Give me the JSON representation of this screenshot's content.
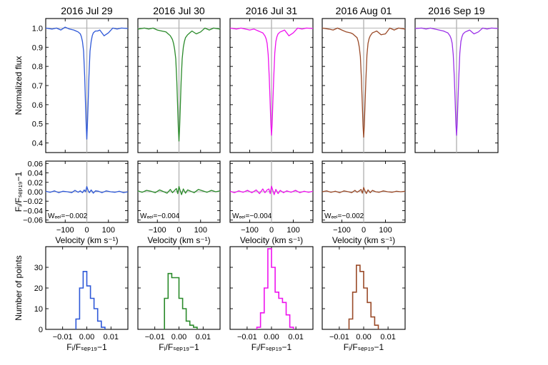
{
  "chart_data": [
    {
      "type": "line",
      "title": "2016 Jul 29",
      "ylabel": "Normalized flux",
      "xlim": [
        -190,
        190
      ],
      "ylim": [
        0.35,
        1.05
      ],
      "yticks": [
        "0.4",
        "0.5",
        "0.6",
        "0.7",
        "0.8",
        "0.9",
        "1.0"
      ],
      "series": [
        {
          "color": "#2e58d8",
          "min": 0.42,
          "x": [
            -190,
            -160,
            -140,
            -120,
            -100,
            -80,
            -60,
            -50,
            -40,
            -30,
            -25,
            -20,
            -15,
            -10,
            -6,
            -3,
            0,
            3,
            6,
            10,
            15,
            20,
            25,
            30,
            40,
            50,
            60,
            80,
            100,
            120,
            140,
            160,
            190
          ],
          "y": [
            1.0,
            0.995,
            1.0,
            0.99,
            1.005,
            0.995,
            0.99,
            0.985,
            0.98,
            0.97,
            0.955,
            0.93,
            0.88,
            0.75,
            0.6,
            0.5,
            0.42,
            0.5,
            0.6,
            0.75,
            0.88,
            0.93,
            0.96,
            0.975,
            0.985,
            0.985,
            0.99,
            0.96,
            0.975,
            1.0,
            0.995,
            1.0,
            0.998
          ]
        }
      ]
    },
    {
      "type": "line",
      "title": "2016 Jul 30",
      "xlim": [
        -190,
        190
      ],
      "ylim": [
        0.35,
        1.05
      ],
      "series": [
        {
          "color": "#2a8a2a",
          "min": 0.41,
          "x": [
            -190,
            -160,
            -140,
            -120,
            -100,
            -80,
            -60,
            -50,
            -40,
            -30,
            -25,
            -20,
            -15,
            -10,
            -6,
            -3,
            0,
            3,
            6,
            10,
            15,
            20,
            25,
            30,
            40,
            50,
            60,
            80,
            100,
            120,
            140,
            160,
            190
          ],
          "y": [
            0.995,
            1.0,
            0.995,
            1.0,
            0.99,
            0.985,
            0.98,
            0.97,
            0.96,
            0.94,
            0.92,
            0.89,
            0.84,
            0.72,
            0.58,
            0.48,
            0.41,
            0.48,
            0.58,
            0.72,
            0.84,
            0.9,
            0.93,
            0.95,
            0.965,
            0.975,
            0.985,
            0.97,
            0.98,
            1.0,
            0.99,
            1.0,
            0.995
          ]
        }
      ]
    },
    {
      "type": "line",
      "title": "2016 Jul 31",
      "xlim": [
        -190,
        190
      ],
      "ylim": [
        0.35,
        1.05
      ],
      "series": [
        {
          "color": "#ee12ee",
          "min": 0.44,
          "x": [
            -190,
            -160,
            -140,
            -120,
            -100,
            -80,
            -60,
            -50,
            -40,
            -30,
            -25,
            -20,
            -15,
            -10,
            -6,
            -3,
            0,
            3,
            6,
            10,
            15,
            20,
            25,
            30,
            40,
            50,
            60,
            80,
            100,
            120,
            140,
            160,
            190
          ],
          "y": [
            1.0,
            0.995,
            1.0,
            0.995,
            0.99,
            0.995,
            0.985,
            0.98,
            0.975,
            0.96,
            0.945,
            0.92,
            0.86,
            0.74,
            0.6,
            0.5,
            0.44,
            0.5,
            0.6,
            0.74,
            0.87,
            0.93,
            0.955,
            0.97,
            0.98,
            0.985,
            0.99,
            0.96,
            0.975,
            1.0,
            0.995,
            1.0,
            0.998
          ]
        }
      ]
    },
    {
      "type": "line",
      "title": "2016 Aug 01",
      "xlim": [
        -190,
        190
      ],
      "ylim": [
        0.35,
        1.05
      ],
      "series": [
        {
          "color": "#9a4a28",
          "min": 0.43,
          "x": [
            -190,
            -160,
            -140,
            -120,
            -100,
            -80,
            -60,
            -50,
            -40,
            -30,
            -25,
            -20,
            -15,
            -10,
            -6,
            -3,
            0,
            3,
            6,
            10,
            15,
            20,
            25,
            30,
            40,
            50,
            60,
            80,
            100,
            120,
            140,
            160,
            190
          ],
          "y": [
            1.0,
            0.995,
            0.99,
            1.0,
            0.99,
            0.98,
            0.975,
            0.97,
            0.96,
            0.95,
            0.93,
            0.9,
            0.85,
            0.73,
            0.59,
            0.49,
            0.43,
            0.49,
            0.59,
            0.73,
            0.86,
            0.92,
            0.945,
            0.96,
            0.975,
            0.98,
            0.985,
            0.965,
            0.97,
            1.0,
            0.99,
            1.0,
            0.995
          ]
        }
      ]
    },
    {
      "type": "line",
      "title": "2016 Sep 19",
      "xlim": [
        -190,
        190
      ],
      "ylim": [
        0.35,
        1.05
      ],
      "series": [
        {
          "color": "#9b30e8",
          "min": 0.44,
          "x": [
            -190,
            -160,
            -140,
            -120,
            -100,
            -80,
            -60,
            -50,
            -40,
            -30,
            -25,
            -20,
            -15,
            -10,
            -6,
            -3,
            0,
            3,
            6,
            10,
            15,
            20,
            25,
            30,
            40,
            50,
            60,
            80,
            100,
            120,
            140,
            160,
            190
          ],
          "y": [
            0.998,
            1.0,
            0.995,
            1.0,
            0.995,
            0.99,
            0.985,
            0.98,
            0.975,
            0.96,
            0.945,
            0.92,
            0.86,
            0.74,
            0.6,
            0.5,
            0.44,
            0.5,
            0.6,
            0.74,
            0.87,
            0.93,
            0.955,
            0.97,
            0.98,
            0.985,
            0.99,
            0.97,
            0.98,
            1.0,
            0.995,
            1.0,
            0.998
          ]
        }
      ]
    },
    {
      "type": "line",
      "xlabel": "Velocity (km s⁻¹)",
      "ylabel": "Fᵢ/Fₛₑₚ₁₉−1",
      "xlim": [
        -190,
        190
      ],
      "ylim": [
        -0.065,
        0.065
      ],
      "xticks": [
        "−100",
        "0",
        "100"
      ],
      "yticks": [
        "−0.06",
        "−0.04",
        "−0.02",
        "0.00",
        "0.02",
        "0.04",
        "0.06"
      ],
      "annotation": "Wₑₑₗ=−0.002",
      "series": [
        {
          "color": "#2e58d8",
          "x": [
            -190,
            -170,
            -150,
            -130,
            -110,
            -90,
            -70,
            -55,
            -40,
            -30,
            -20,
            -12,
            -6,
            0,
            6,
            12,
            20,
            30,
            40,
            55,
            70,
            90,
            110,
            130,
            150,
            170,
            190
          ],
          "y": [
            0.001,
            -0.001,
            0.002,
            -0.002,
            0.001,
            0.0,
            -0.002,
            0.003,
            -0.001,
            0.002,
            -0.002,
            0.004,
            0.0,
            0.011,
            0.003,
            -0.002,
            0.004,
            -0.003,
            0.002,
            0.001,
            -0.002,
            0.002,
            0.0,
            -0.001,
            0.001,
            -0.002,
            0.0
          ]
        }
      ]
    },
    {
      "type": "line",
      "xlabel": "Velocity (km s⁻¹)",
      "xlim": [
        -190,
        190
      ],
      "ylim": [
        -0.065,
        0.065
      ],
      "xticks": [
        "−100",
        "0",
        "100"
      ],
      "annotation": "Wₑₑₗ=−0.004",
      "series": [
        {
          "color": "#2a8a2a",
          "x": [
            -190,
            -170,
            -150,
            -130,
            -110,
            -90,
            -70,
            -55,
            -40,
            -30,
            -20,
            -12,
            -6,
            0,
            6,
            12,
            20,
            30,
            40,
            55,
            70,
            90,
            110,
            130,
            150,
            170,
            190
          ],
          "y": [
            0.002,
            -0.001,
            0.003,
            0.001,
            -0.002,
            0.004,
            0.0,
            -0.003,
            0.005,
            -0.002,
            0.003,
            0.007,
            -0.004,
            0.011,
            0.002,
            -0.006,
            0.006,
            -0.003,
            0.004,
            0.001,
            -0.002,
            0.005,
            0.002,
            -0.001,
            0.003,
            0.0,
            0.002
          ]
        }
      ]
    },
    {
      "type": "line",
      "xlabel": "Velocity (km s⁻¹)",
      "xlim": [
        -190,
        190
      ],
      "ylim": [
        -0.065,
        0.065
      ],
      "xticks": [
        "−100",
        "0",
        "100"
      ],
      "annotation": "Wₑₑₗ=−0.004",
      "series": [
        {
          "color": "#ee12ee",
          "x": [
            -190,
            -170,
            -150,
            -130,
            -110,
            -90,
            -70,
            -55,
            -40,
            -30,
            -20,
            -12,
            -6,
            0,
            6,
            12,
            20,
            30,
            40,
            55,
            70,
            90,
            110,
            130,
            150,
            170,
            190
          ],
          "y": [
            0.001,
            -0.002,
            0.002,
            -0.001,
            0.003,
            -0.002,
            0.004,
            -0.004,
            0.006,
            -0.002,
            0.004,
            0.006,
            -0.004,
            0.012,
            0.003,
            -0.006,
            0.005,
            -0.004,
            0.003,
            -0.002,
            0.002,
            -0.001,
            0.003,
            -0.002,
            0.001,
            -0.001,
            0.001
          ]
        }
      ]
    },
    {
      "type": "line",
      "xlabel": "Velocity (km s⁻¹)",
      "xlim": [
        -190,
        190
      ],
      "ylim": [
        -0.065,
        0.065
      ],
      "xticks": [
        "−100",
        "0",
        "100"
      ],
      "annotation": "Wₑₑₗ=−0.002",
      "series": [
        {
          "color": "#9a4a28",
          "x": [
            -190,
            -170,
            -150,
            -130,
            -110,
            -90,
            -70,
            -55,
            -40,
            -30,
            -20,
            -12,
            -6,
            0,
            6,
            12,
            20,
            30,
            40,
            55,
            70,
            90,
            110,
            130,
            150,
            170,
            190
          ],
          "y": [
            0.0,
            0.002,
            -0.001,
            0.001,
            -0.002,
            0.002,
            0.0,
            -0.002,
            0.003,
            -0.001,
            0.002,
            0.005,
            -0.003,
            0.009,
            0.002,
            -0.004,
            0.004,
            -0.002,
            0.003,
            0.0,
            -0.001,
            0.002,
            0.0,
            -0.001,
            0.001,
            0.0,
            0.001
          ]
        }
      ]
    },
    {
      "type": "bar",
      "subtype": "step-histogram",
      "xlabel": "Fᵢ/Fₛₑₚ₁₉−1",
      "ylabel": "Number of points",
      "xlim": [
        -0.017,
        0.017
      ],
      "ylim": [
        0,
        40
      ],
      "xticks": [
        "−0.01",
        "0.00",
        "0.01"
      ],
      "yticks": [
        "0",
        "10",
        "20",
        "30"
      ],
      "bin_width": 0.0015,
      "bin_start": -0.0045,
      "counts": [
        5,
        20,
        28,
        21,
        15,
        10,
        4,
        1
      ],
      "color": "#2e58d8"
    },
    {
      "type": "bar",
      "subtype": "step-histogram",
      "xlabel": "Fᵢ/Fₛₑₚ₁₉−1",
      "xlim": [
        -0.017,
        0.017
      ],
      "ylim": [
        0,
        40
      ],
      "xticks": [
        "−0.01",
        "0.00",
        "0.01"
      ],
      "bin_width": 0.0015,
      "bin_start": -0.006,
      "counts": [
        15,
        27,
        25,
        25,
        15,
        10,
        4,
        2,
        1
      ],
      "color": "#2a8a2a"
    },
    {
      "type": "bar",
      "subtype": "step-histogram",
      "xlabel": "Fᵢ/Fₛₑₚ₁₉−1",
      "xlim": [
        -0.017,
        0.017
      ],
      "ylim": [
        0,
        40
      ],
      "xticks": [
        "−0.01",
        "0.00",
        "0.01"
      ],
      "bin_width": 0.0015,
      "bin_start": -0.006,
      "counts": [
        1,
        8,
        20,
        39,
        30,
        18,
        15,
        13,
        7,
        1
      ],
      "color": "#ee12ee"
    },
    {
      "type": "bar",
      "subtype": "step-histogram",
      "xlabel": "Fᵢ/Fₛₑₚ₁₉−1",
      "xlim": [
        -0.017,
        0.017
      ],
      "ylim": [
        0,
        40
      ],
      "xticks": [
        "−0.01",
        "0.00",
        "0.01"
      ],
      "bin_width": 0.0015,
      "bin_start": -0.006,
      "counts": [
        5,
        18,
        31,
        28,
        20,
        13,
        6,
        2
      ],
      "color": "#9a4a28"
    }
  ]
}
